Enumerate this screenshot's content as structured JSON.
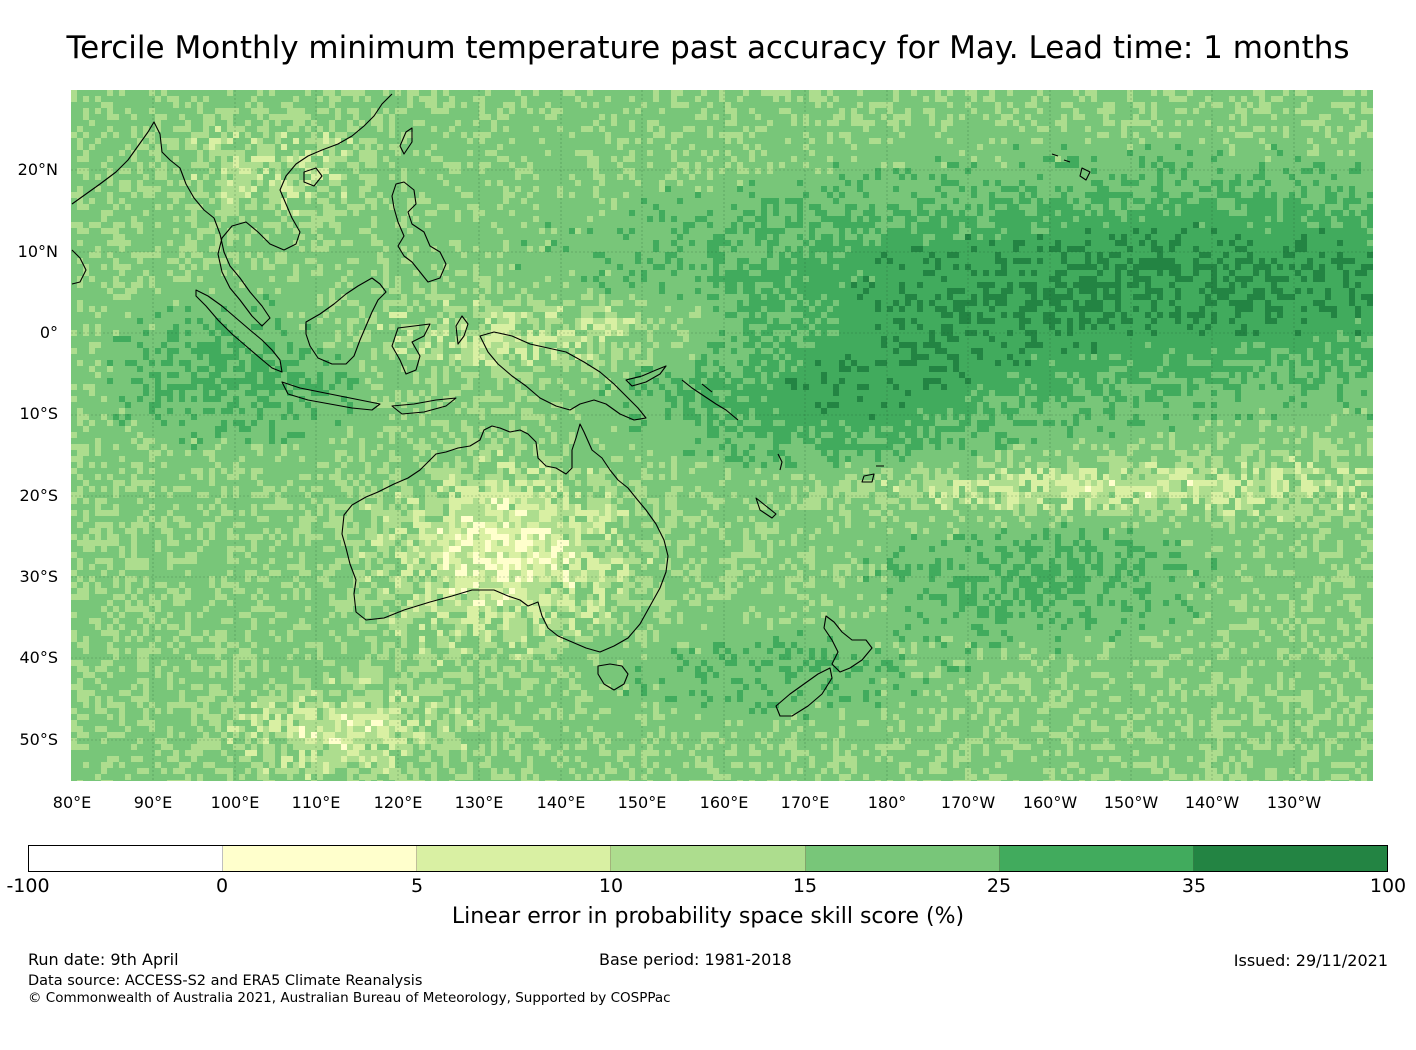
{
  "title": "Tercile Monthly minimum temperature past accuracy for May. Lead time: 1 months",
  "map": {
    "lat_labels": [
      "20°N",
      "10°N",
      "0°",
      "10°S",
      "20°S",
      "30°S",
      "40°S",
      "50°S"
    ],
    "lon_labels": [
      "80°E",
      "90°E",
      "100°E",
      "110°E",
      "120°E",
      "130°E",
      "140°E",
      "150°E",
      "160°E",
      "170°E",
      "180°",
      "170°W",
      "160°W",
      "150°W",
      "140°W",
      "130°W"
    ]
  },
  "legend": {
    "ticks": [
      "-100",
      "0",
      "5",
      "10",
      "15",
      "25",
      "35",
      "100"
    ],
    "colors": [
      "#ffffff",
      "#ffffcc",
      "#d9f0a3",
      "#addd8e",
      "#78c679",
      "#41ab5d",
      "#238443"
    ],
    "title": "Linear error in probability space skill score (%)"
  },
  "footer": {
    "run_date": "Run date: 9th April",
    "base_period": "Base period: 1981-2018",
    "issued": "Issued: 29/11/2021",
    "data_source": "Data source: ACCESS-S2 and ERA5 Climate Reanalysis",
    "copyright": "© Commonwealth of Australia 2021, Australian Bureau of Meteorology, Supported by COSPPac"
  }
}
